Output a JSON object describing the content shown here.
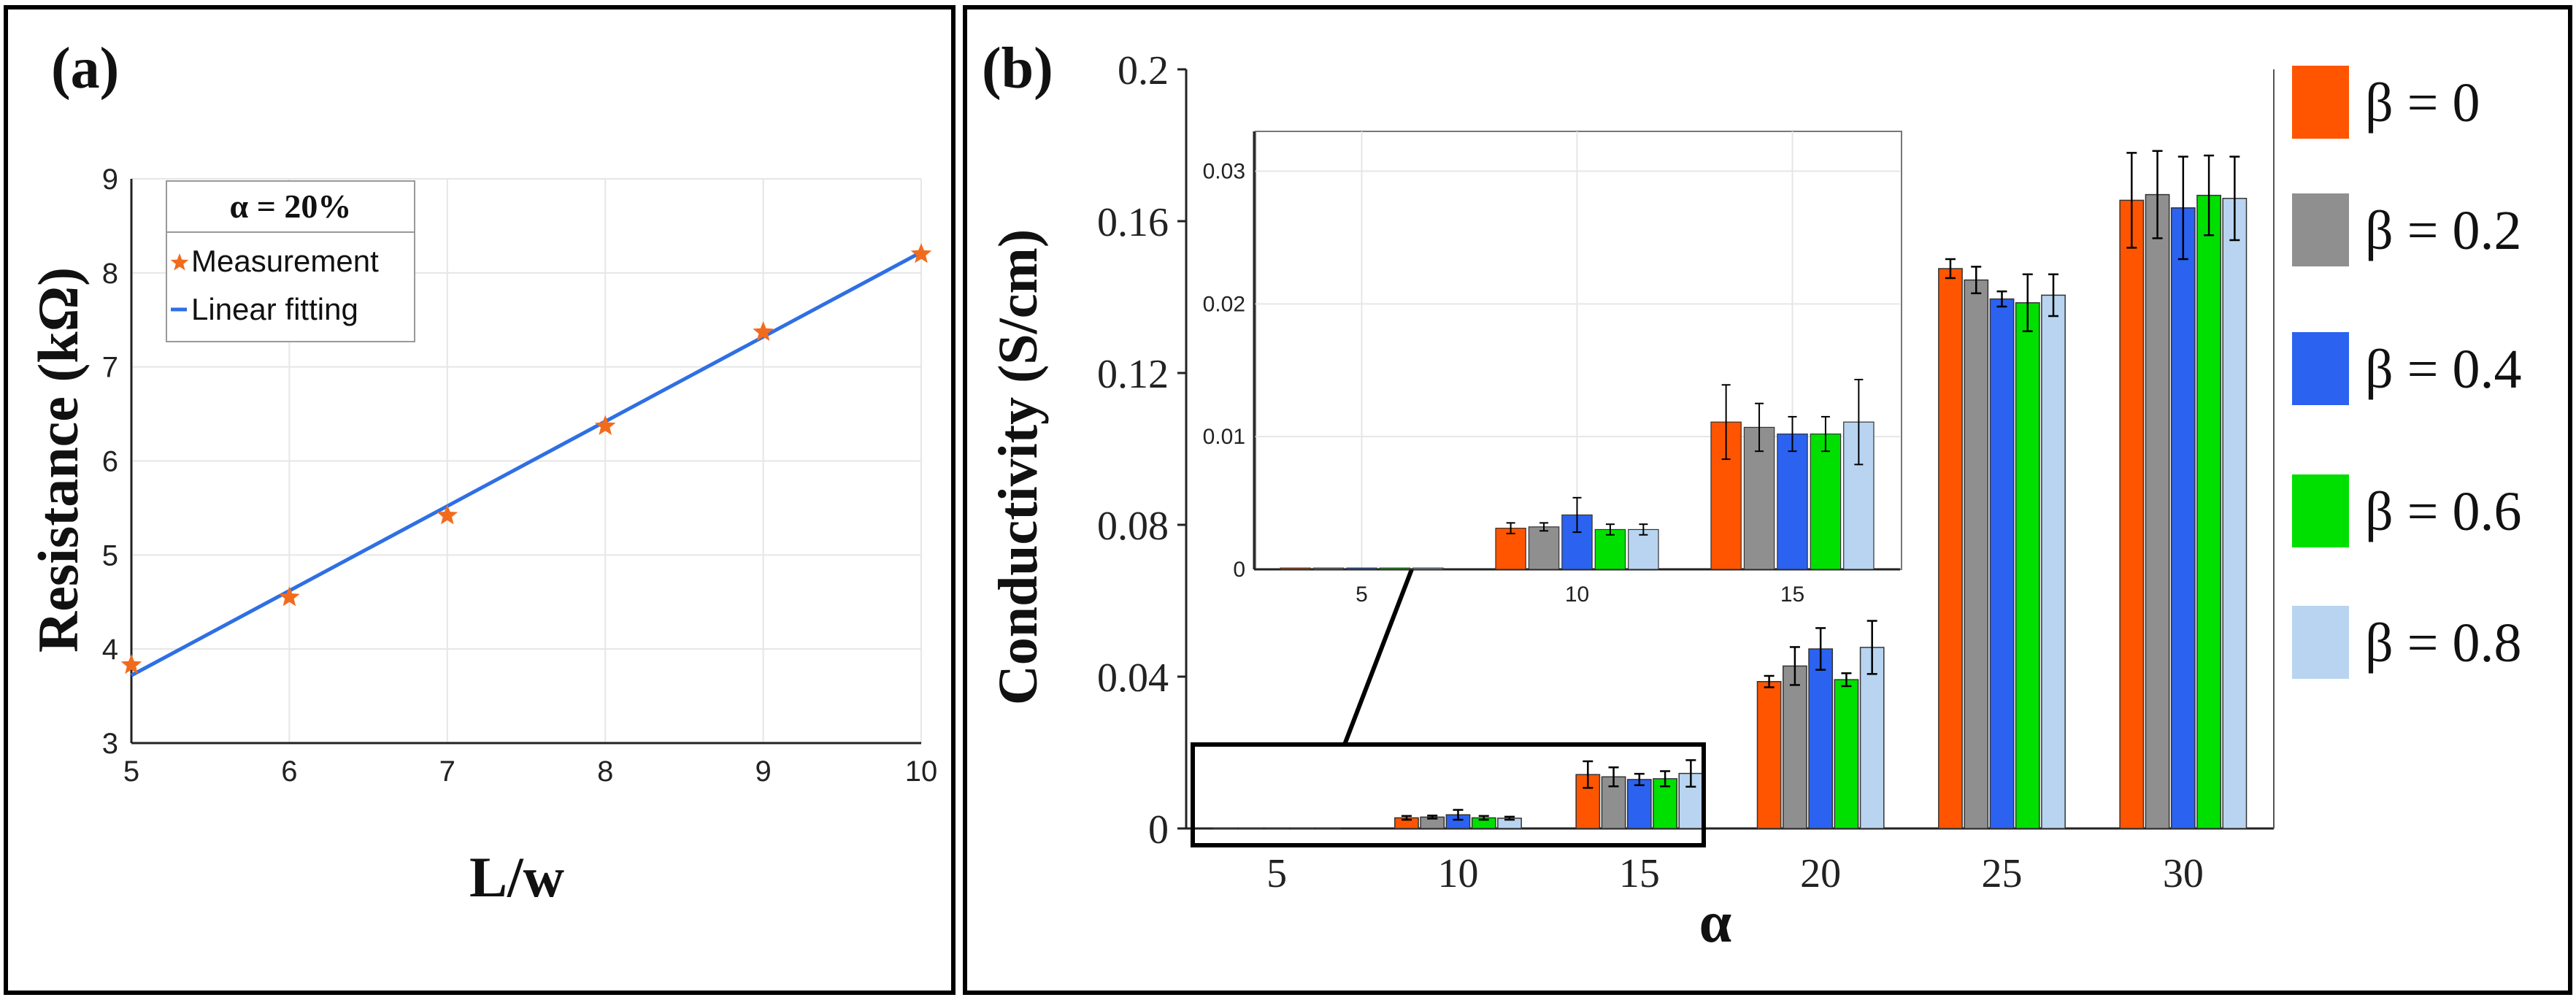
{
  "panel_a": {
    "label": "(a)",
    "chart_data": {
      "type": "scatter",
      "xlabel": "L/w",
      "ylabel": "Resistance (kΩ)",
      "xlim": [
        5,
        10
      ],
      "ylim": [
        3,
        9
      ],
      "x_ticks": [
        "5",
        "6",
        "7",
        "8",
        "9",
        "10"
      ],
      "y_ticks": [
        "3",
        "4",
        "5",
        "6",
        "7",
        "8",
        "9"
      ],
      "legend_title": "α = 20%",
      "series": [
        {
          "name": "Measurement",
          "kind": "scatter",
          "marker": "star",
          "color": "#F26B1D",
          "x": [
            5,
            6,
            7,
            8,
            9,
            10
          ],
          "y": [
            3.83,
            4.55,
            5.42,
            6.37,
            7.37,
            8.2
          ]
        },
        {
          "name": "Linear fitting",
          "kind": "line",
          "color": "#2F6FE4",
          "x": [
            5,
            10
          ],
          "y": [
            3.72,
            8.22
          ]
        }
      ],
      "grid": true
    }
  },
  "panel_b": {
    "label": "(b)",
    "chart_data": {
      "type": "bar",
      "xlabel": "α",
      "ylabel": "Conductivity (S/cm)",
      "categories": [
        "5",
        "10",
        "15",
        "20",
        "25",
        "30"
      ],
      "ylim": [
        0,
        0.2
      ],
      "y_ticks": [
        "0",
        "0.04",
        "0.08",
        "0.12",
        "0.16",
        "0.2"
      ],
      "series": [
        {
          "name": "β = 0",
          "color": "#FF5500",
          "values": [
            0.0001,
            0.0028,
            0.0142,
            0.0387,
            0.1475,
            0.1655
          ],
          "errors": [
            0.0,
            0.0005,
            0.0035,
            0.0015,
            0.0025,
            0.0125
          ]
        },
        {
          "name": "β = 0.2",
          "color": "#8F8F8F",
          "values": [
            0.0001,
            0.003,
            0.0136,
            0.0428,
            0.1445,
            0.167
          ],
          "errors": [
            0.0,
            0.0004,
            0.0025,
            0.005,
            0.0035,
            0.0115
          ]
        },
        {
          "name": "β = 0.4",
          "color": "#2B62F0",
          "values": [
            0.0001,
            0.0036,
            0.0129,
            0.0473,
            0.1395,
            0.1635
          ],
          "errors": [
            0.0,
            0.0013,
            0.0015,
            0.0055,
            0.002,
            0.0135
          ]
        },
        {
          "name": "β = 0.6",
          "color": "#00E000",
          "values": [
            0.0001,
            0.0028,
            0.0131,
            0.0392,
            0.1385,
            0.1668
          ],
          "errors": [
            0.0,
            0.0005,
            0.002,
            0.0017,
            0.0075,
            0.0105
          ]
        },
        {
          "name": "β = 0.8",
          "color": "#B8D4F0",
          "values": [
            0.0001,
            0.0027,
            0.0145,
            0.0477,
            0.1405,
            0.166
          ],
          "errors": [
            0.0,
            0.0004,
            0.0035,
            0.007,
            0.0055,
            0.011
          ]
        }
      ],
      "inset": {
        "type": "bar",
        "categories": [
          "5",
          "10",
          "15"
        ],
        "ylim": [
          0,
          0.033
        ],
        "y_ticks": [
          "0",
          "0.01",
          "0.02",
          "0.03"
        ],
        "series_values": [
          [
            0.0001,
            0.0031,
            0.0111
          ],
          [
            0.0001,
            0.0032,
            0.0107
          ],
          [
            0.0001,
            0.0041,
            0.0102
          ],
          [
            0.0001,
            0.003,
            0.0102
          ],
          [
            0.0001,
            0.003,
            0.0111
          ]
        ],
        "series_errors": [
          [
            0.0,
            0.0004,
            0.0028
          ],
          [
            0.0,
            0.0003,
            0.0018
          ],
          [
            0.0,
            0.0013,
            0.0013
          ],
          [
            0.0,
            0.0004,
            0.0013
          ],
          [
            0.0,
            0.0004,
            0.0032
          ]
        ]
      },
      "legend_placement": "right"
    }
  }
}
